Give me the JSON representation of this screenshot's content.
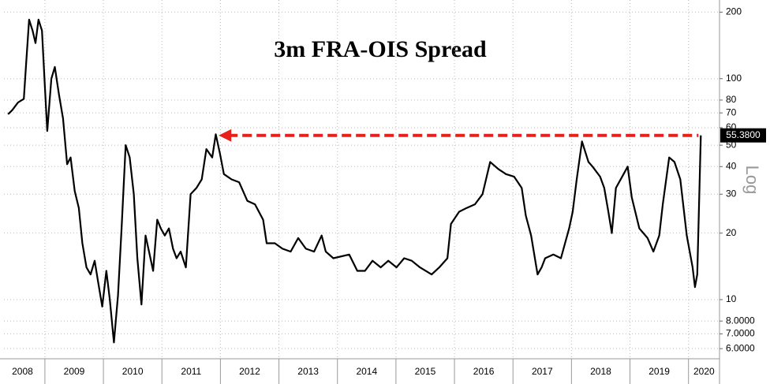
{
  "chart_data": {
    "type": "line",
    "title": "3m FRA-OIS Spread",
    "y_label": "Log",
    "log_scale": true,
    "grid": true,
    "color": "#000000",
    "x": [
      2008.37,
      2008.44,
      2008.54,
      2008.64,
      2008.68,
      2008.73,
      2008.79,
      2008.84,
      2008.89,
      2008.95,
      2009.0,
      2009.04,
      2009.11,
      2009.17,
      2009.24,
      2009.31,
      2009.38,
      2009.44,
      2009.51,
      2009.58,
      2009.64,
      2009.71,
      2009.78,
      2009.85,
      2009.91,
      2009.98,
      2010.05,
      2010.11,
      2010.18,
      2010.25,
      2010.31,
      2010.38,
      2010.45,
      2010.52,
      2010.58,
      2010.65,
      2010.72,
      2010.78,
      2010.85,
      2010.92,
      2010.98,
      2011.05,
      2011.12,
      2011.19,
      2011.25,
      2011.32,
      2011.41,
      2011.49,
      2011.59,
      2011.68,
      2011.76,
      2011.86,
      2011.92,
      2011.99,
      2012.06,
      2012.19,
      2012.32,
      2012.46,
      2012.59,
      2012.73,
      2012.79,
      2012.93,
      2013.06,
      2013.2,
      2013.33,
      2013.46,
      2013.6,
      2013.73,
      2013.8,
      2013.93,
      2014.2,
      2014.34,
      2014.47,
      2014.6,
      2014.74,
      2014.87,
      2015.01,
      2015.14,
      2015.27,
      2015.41,
      2015.61,
      2015.74,
      2015.88,
      2015.94,
      2016.08,
      2016.21,
      2016.35,
      2016.48,
      2016.61,
      2016.75,
      2016.88,
      2017.02,
      2017.15,
      2017.22,
      2017.31,
      2017.42,
      2017.49,
      2017.55,
      2017.69,
      2017.82,
      2017.89,
      2017.96,
      2018.02,
      2018.09,
      2018.18,
      2018.29,
      2018.36,
      2018.49,
      2018.56,
      2018.63,
      2018.69,
      2018.76,
      2018.89,
      2018.96,
      2019.03,
      2019.16,
      2019.3,
      2019.4,
      2019.5,
      2019.56,
      2019.67,
      2019.76,
      2019.86,
      2019.97,
      2020.07,
      2020.11,
      2020.15,
      2020.21
    ],
    "values": [
      69,
      72,
      78,
      81,
      118,
      185,
      165,
      145,
      185,
      165,
      92,
      58,
      100,
      113,
      85,
      66,
      41,
      44,
      31,
      26,
      18,
      14,
      13,
      15,
      12,
      9.3,
      13.5,
      10,
      6.4,
      10.5,
      21,
      50,
      44,
      30,
      15.4,
      9.5,
      19.5,
      16.5,
      13.5,
      23,
      21,
      19.5,
      21,
      17,
      15.4,
      16.5,
      14,
      30,
      32,
      35,
      48,
      44,
      56,
      46,
      37,
      35,
      34,
      28,
      27,
      23,
      18,
      18,
      17,
      16.5,
      19,
      17,
      16.5,
      19.5,
      16.5,
      15.4,
      16,
      13.5,
      13.5,
      15,
      14,
      15,
      14,
      15.4,
      15,
      14,
      13,
      14,
      15.4,
      22,
      25,
      26,
      27,
      30,
      42,
      39,
      37,
      36,
      32,
      24,
      19.5,
      13,
      14,
      15.4,
      16,
      15.4,
      18,
      21,
      25,
      35,
      52,
      42,
      40,
      36,
      32,
      25,
      20,
      32,
      37,
      40,
      29,
      21,
      19,
      16.5,
      19.5,
      27,
      44,
      42,
      35,
      19.5,
      14,
      11.4,
      13,
      55.38
    ],
    "last_value_label": "55.3800",
    "arrow": {
      "x": [
        2011.97,
        2020.17
      ],
      "y": 55.38,
      "color": "#e8201c"
    },
    "xlim": [
      2008.3,
      2020.53
    ],
    "xticks": [
      2008,
      2009,
      2010,
      2011,
      2012,
      2013,
      2014,
      2015,
      2016,
      2017,
      2018,
      2019,
      2020
    ],
    "ylim": [
      5.4,
      227
    ],
    "yticks": [
      200,
      100,
      80,
      70,
      60,
      50,
      40,
      30,
      20,
      10,
      {
        "value": 8,
        "label": "8.0000"
      },
      {
        "value": 7,
        "label": "7.0000"
      },
      {
        "value": 6,
        "label": "6.0000"
      }
    ]
  }
}
